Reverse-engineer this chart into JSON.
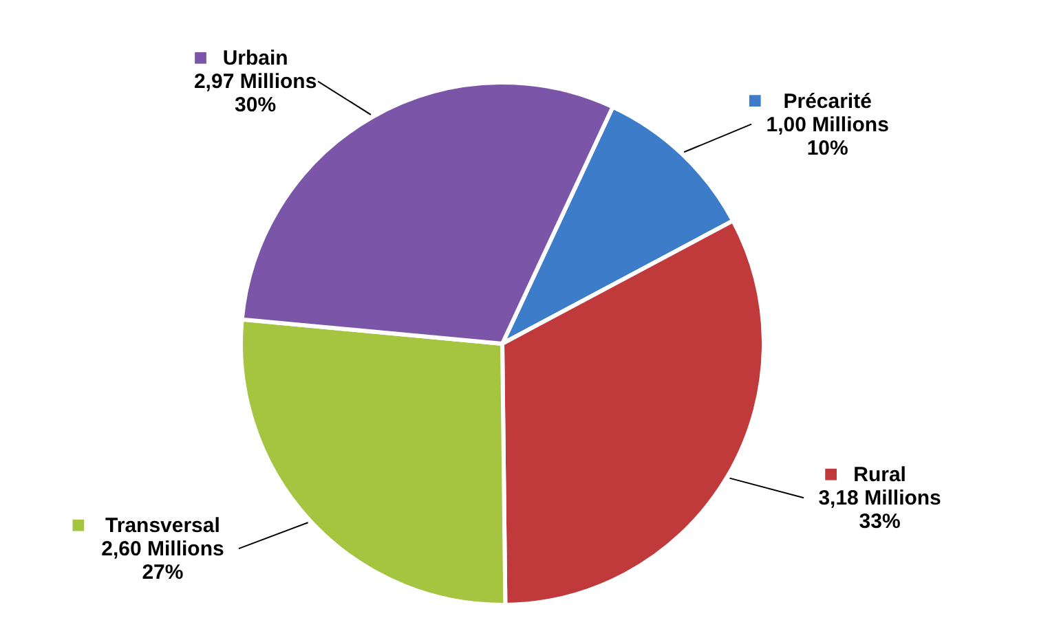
{
  "chart_data": {
    "type": "pie",
    "categories": [
      "Précarité",
      "Rural",
      "Transversal",
      "Urbain"
    ],
    "values": [
      1.0,
      3.18,
      2.6,
      2.97
    ],
    "colors": [
      "#3d7cc9",
      "#c0393b",
      "#a5c43f",
      "#7b55a8"
    ],
    "value_labels": [
      "1,00 Millions\n10%",
      "3,18 Millions\n33%",
      "2,60 Millions\n27%",
      "2,97 Millions\n30%"
    ],
    "legend": "right"
  }
}
